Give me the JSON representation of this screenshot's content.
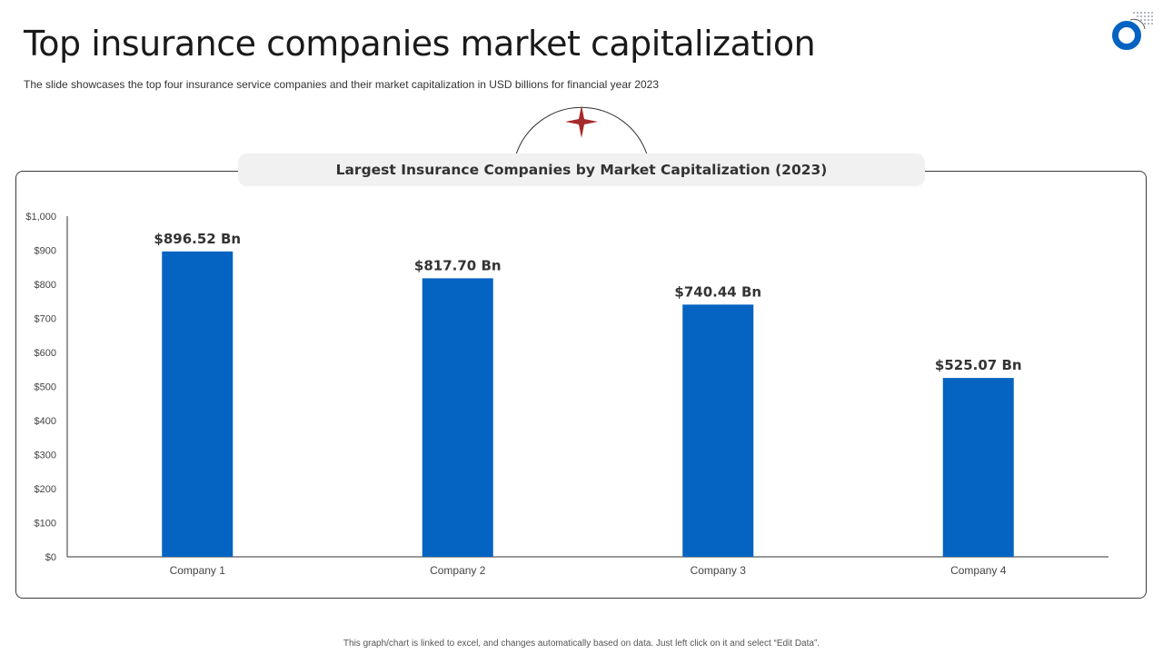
{
  "slide": {
    "title": "Top insurance companies market capitalization",
    "subtitle": "The slide showcases the top four insurance service companies and their market capitalization in USD billions for financial year 2023",
    "footer_note": "This graph/chart is linked to excel, and changes automatically based on data. Just left click on it and select “Edit Data”."
  },
  "colors": {
    "bar": "#0563C1",
    "ornament_star": "#a52a2a",
    "logo": "#0563C1"
  },
  "icons": {
    "logo": "ring-logo-icon",
    "ornament": "four-point-star-icon"
  },
  "chart_data": {
    "type": "bar",
    "title": "Largest Insurance Companies by Market Capitalization (2023)",
    "categories": [
      "Company 1",
      "Company 2",
      "Company 3",
      "Company 4"
    ],
    "values": [
      896.52,
      817.7,
      740.44,
      525.07
    ],
    "data_labels": [
      "$896.52 Bn",
      "$817.70 Bn",
      "$740.44 Bn",
      "$525.07 Bn"
    ],
    "ylim": [
      0,
      1000
    ],
    "yticks": [
      0,
      100,
      200,
      300,
      400,
      500,
      600,
      700,
      800,
      900,
      1000
    ],
    "ytick_labels": [
      "$0",
      "$100",
      "$200",
      "$300",
      "$400",
      "$500",
      "$600",
      "$700",
      "$800",
      "$900",
      "$1,000"
    ],
    "xlabel": "",
    "ylabel": "",
    "grid": false,
    "legend": "none"
  }
}
